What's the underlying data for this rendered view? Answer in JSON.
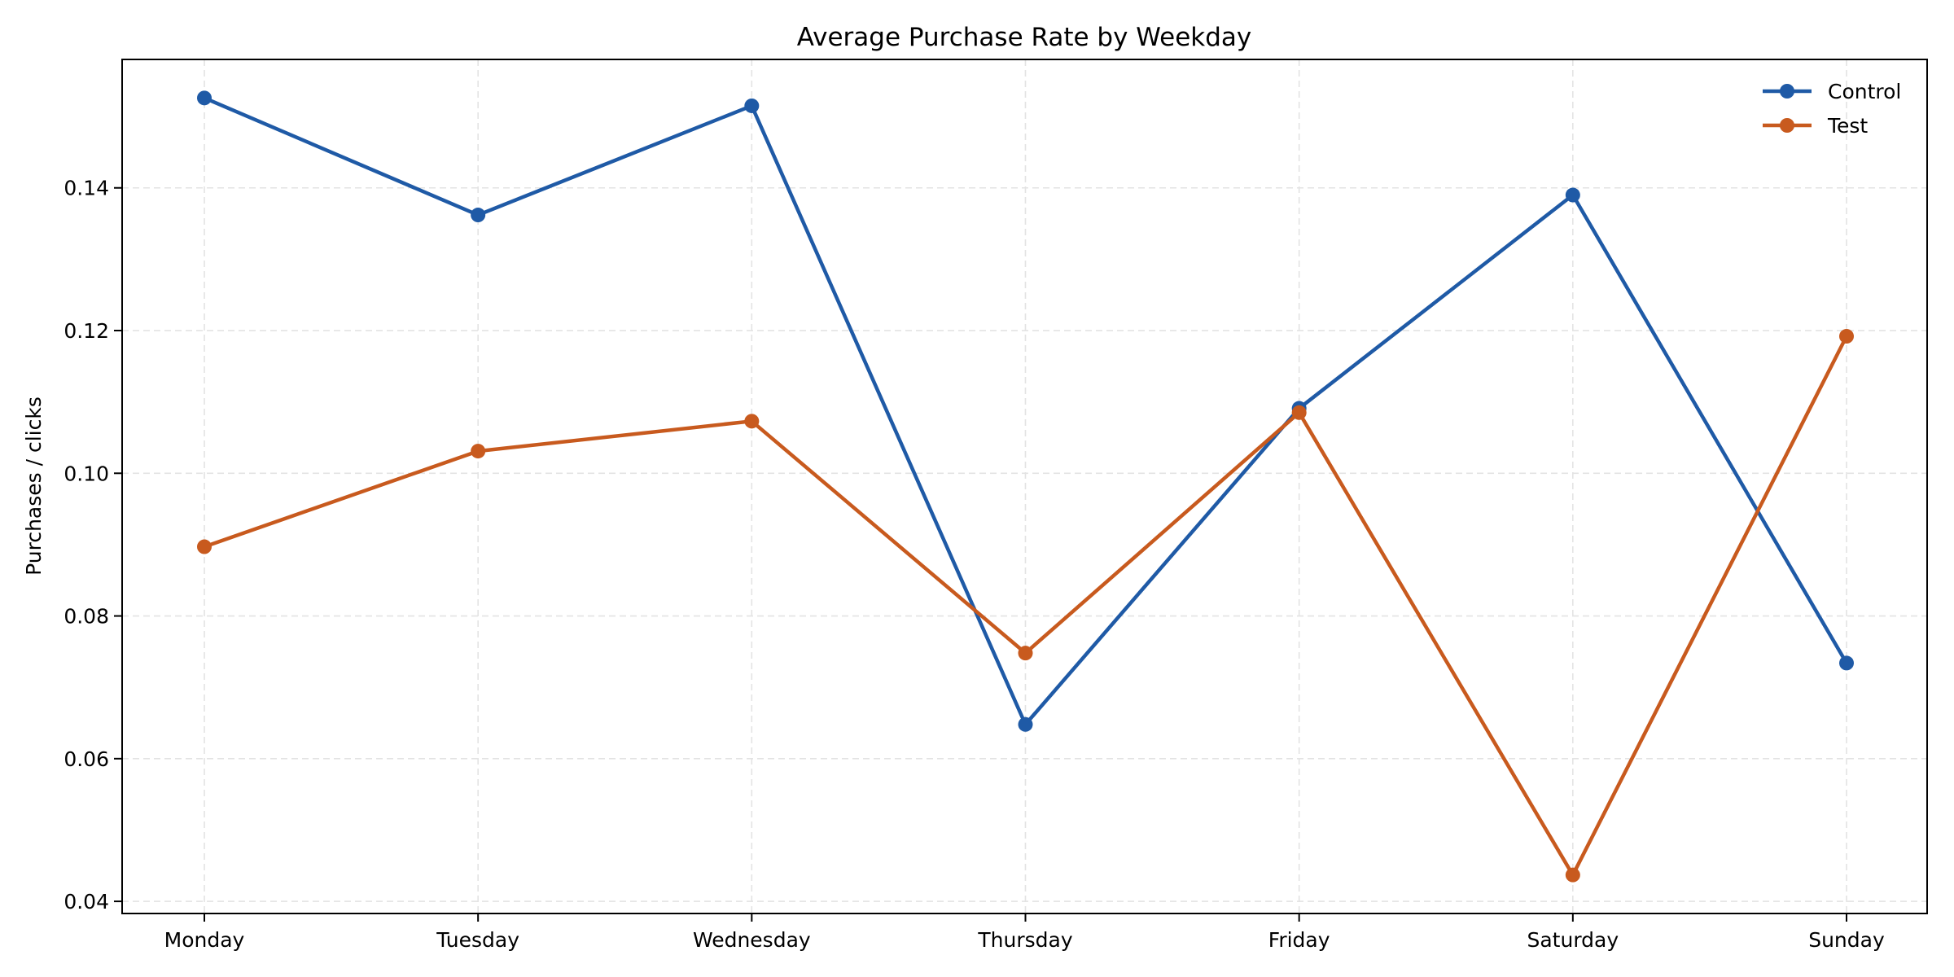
{
  "chart_data": {
    "type": "line",
    "title": "Average Purchase Rate by Weekday",
    "xlabel": "",
    "ylabel": "Purchases / clicks",
    "categories": [
      "Monday",
      "Tuesday",
      "Wednesday",
      "Thursday",
      "Friday",
      "Saturday",
      "Sunday"
    ],
    "series": [
      {
        "name": "Control",
        "color": "#1f5aa6",
        "values": [
          0.1526,
          0.1362,
          0.1515,
          0.0648,
          0.1091,
          0.139,
          0.0734
        ]
      },
      {
        "name": "Test",
        "color": "#c85a1e",
        "values": [
          0.0897,
          0.1031,
          0.1073,
          0.0748,
          0.1085,
          0.0437,
          0.1192
        ]
      }
    ],
    "yticks": [
      0.04,
      0.06,
      0.08,
      0.1,
      0.12,
      0.14
    ],
    "ytick_labels": [
      "0.04",
      "0.06",
      "0.08",
      "0.10",
      "0.12",
      "0.14"
    ],
    "ylim": [
      0.0383,
      0.158
    ],
    "grid": true,
    "grid_style": "dashed",
    "legend_position": "top-right",
    "marker": "circle"
  }
}
